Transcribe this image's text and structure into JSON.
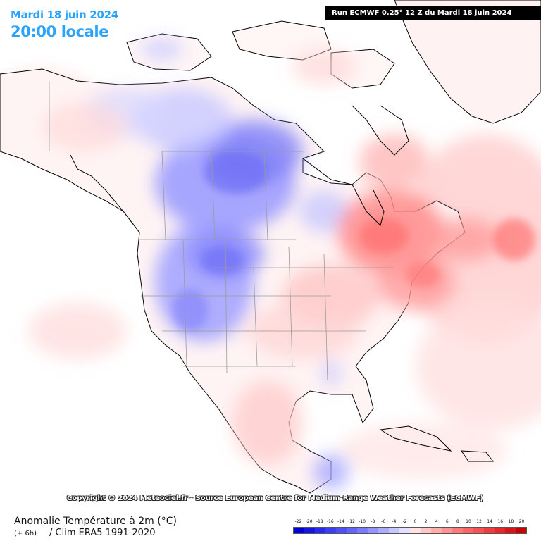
{
  "header": {
    "date": "Mardi 18 juin 2024",
    "time": "20:00 locale",
    "run": "Run ECMWF 0.25° 12 Z du Mardi 18 juin 2024",
    "text_color": "#2aa3ff"
  },
  "copyright": "Copyright © 2024 Meteociel.fr - Source European Centre for Medium-Range Weather Forecasts (ECMWF)",
  "footer": {
    "variable": "Anomalie Température à 2m (°C)",
    "step": "(+ 6h)",
    "climatology": "/ Clim ERA5 1991-2020"
  },
  "legend": {
    "labels": [
      "-22",
      "-20",
      "-18",
      "-16",
      "-14",
      "-12",
      "-10",
      "-8",
      "-6",
      "-4",
      "-2",
      "0",
      "2",
      "4",
      "6",
      "8",
      "10",
      "12",
      "14",
      "16",
      "18",
      "20"
    ],
    "colors": [
      "#0000d8",
      "#1414e6",
      "#2828f0",
      "#3c3cf6",
      "#5050fa",
      "#6464fc",
      "#7a7aff",
      "#9494ff",
      "#adadff",
      "#c7c7ff",
      "#e2e2ff",
      "#ffe2e2",
      "#ffc7c7",
      "#ffadad",
      "#ff9494",
      "#ff7a7a",
      "#ff6464",
      "#fa5050",
      "#f03c3c",
      "#e62828",
      "#d81414",
      "#c80000"
    ]
  },
  "map": {
    "land_color": "#fff5f5",
    "sea_color": "#ffffff",
    "border_color": "#9a9a9a",
    "coast_color": "#000000"
  }
}
